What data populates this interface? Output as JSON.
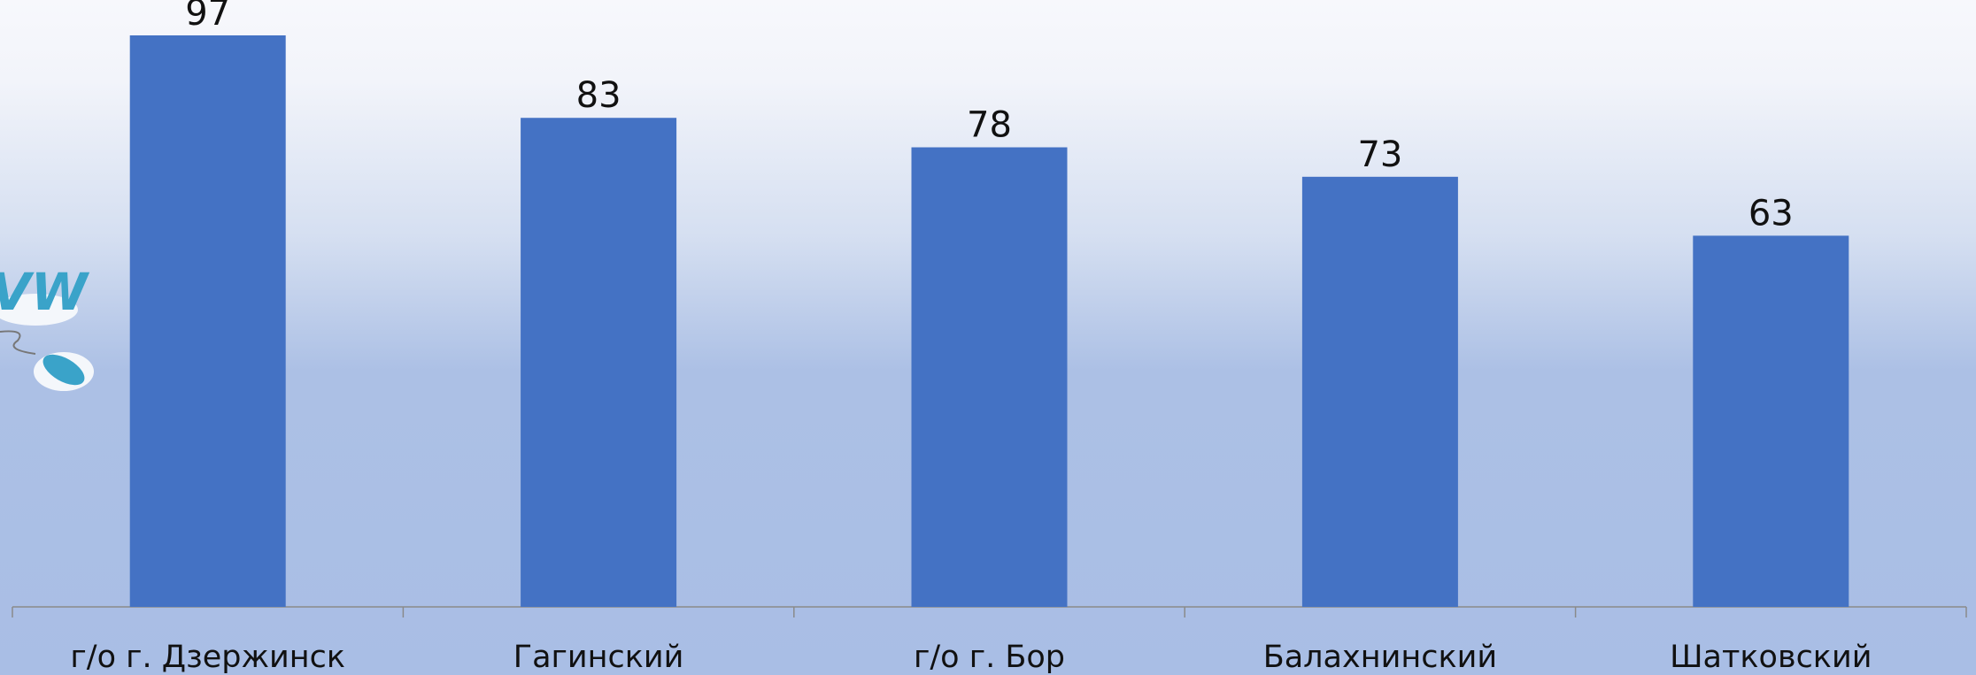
{
  "chart_data": {
    "type": "bar",
    "categories": [
      "г/о г. Дзержинск",
      "Гагинский",
      "г/о г. Бор",
      "Балахнинский",
      "Шатковский"
    ],
    "values": [
      97,
      83,
      78,
      73,
      63
    ],
    "color": "#4472c4"
  }
}
